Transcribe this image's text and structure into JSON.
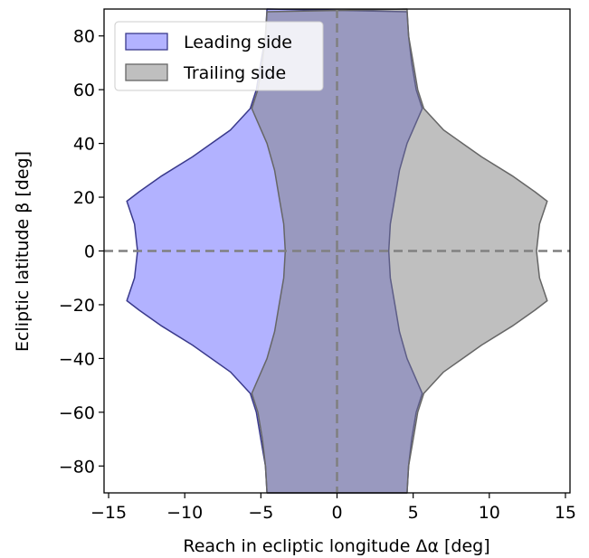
{
  "chart_data": {
    "type": "area",
    "xlabel": "Reach in ecliptic longitude  Δα [deg]",
    "ylabel": "Ecliptic latitude  β [deg]",
    "xlim": [
      -15.3,
      15.3
    ],
    "ylim": [
      -90,
      90
    ],
    "xticks": [
      -15,
      -10,
      -5,
      0,
      5,
      10,
      15
    ],
    "xtick_labels": [
      "−15",
      "−10",
      "−5",
      "0",
      "5",
      "10",
      "15"
    ],
    "yticks": [
      -80,
      -60,
      -40,
      -20,
      0,
      20,
      40,
      60,
      80
    ],
    "ytick_labels": [
      "−80",
      "−60",
      "−40",
      "−20",
      "0",
      "20",
      "40",
      "60",
      "80"
    ],
    "grid": false,
    "legend_position": "top-left",
    "reference_lines": [
      {
        "orientation": "horizontal",
        "value": 0,
        "style": "dashed",
        "color": "#808080"
      },
      {
        "orientation": "vertical",
        "value": 0,
        "style": "dashed",
        "color": "#808080"
      }
    ],
    "series": [
      {
        "name": "Leading side",
        "fill": "#6666ff",
        "fill_opacity": 0.5,
        "stroke": "#3a3a8c",
        "right_boundary": [
          {
            "beta": -90,
            "x": 4.6
          },
          {
            "beta": -80,
            "x": 4.7
          },
          {
            "beta": -70,
            "x": 4.9
          },
          {
            "beta": -60,
            "x": 5.2
          },
          {
            "beta": -53,
            "x": 5.6
          },
          {
            "beta": -40,
            "x": 4.6
          },
          {
            "beta": -30,
            "x": 4.1
          },
          {
            "beta": -20,
            "x": 3.8
          },
          {
            "beta": -10,
            "x": 3.5
          },
          {
            "beta": 0,
            "x": 3.4
          },
          {
            "beta": 10,
            "x": 3.5
          },
          {
            "beta": 20,
            "x": 3.8
          },
          {
            "beta": 30,
            "x": 4.1
          },
          {
            "beta": 40,
            "x": 4.6
          },
          {
            "beta": 53,
            "x": 5.6
          },
          {
            "beta": 60,
            "x": 5.2
          },
          {
            "beta": 70,
            "x": 4.9
          },
          {
            "beta": 80,
            "x": 4.7
          },
          {
            "beta": 89,
            "x": 4.6
          }
        ],
        "left_boundary": [
          {
            "beta": 90,
            "x": -4.6
          },
          {
            "beta": 80,
            "x": -4.7
          },
          {
            "beta": 70,
            "x": -5.0
          },
          {
            "beta": 60,
            "x": -5.3
          },
          {
            "beta": 53,
            "x": -5.7
          },
          {
            "beta": 45,
            "x": -7.0
          },
          {
            "beta": 35,
            "x": -9.5
          },
          {
            "beta": 28,
            "x": -11.5
          },
          {
            "beta": 22,
            "x": -13.0
          },
          {
            "beta": 18.5,
            "x": -13.8
          },
          {
            "beta": 10,
            "x": -13.3
          },
          {
            "beta": 0,
            "x": -13.1
          },
          {
            "beta": -10,
            "x": -13.3
          },
          {
            "beta": -18.5,
            "x": -13.8
          },
          {
            "beta": -22,
            "x": -13.0
          },
          {
            "beta": -28,
            "x": -11.5
          },
          {
            "beta": -35,
            "x": -9.5
          },
          {
            "beta": -45,
            "x": -7.0
          },
          {
            "beta": -53,
            "x": -5.7
          },
          {
            "beta": -60,
            "x": -5.3
          },
          {
            "beta": -70,
            "x": -5.0
          },
          {
            "beta": -80,
            "x": -4.7
          },
          {
            "beta": -90,
            "x": -4.6
          }
        ]
      },
      {
        "name": "Trailing side",
        "fill": "#808080",
        "fill_opacity": 0.5,
        "stroke": "#666666",
        "right_boundary": [
          {
            "beta": -90,
            "x": 4.6
          },
          {
            "beta": -80,
            "x": 4.7
          },
          {
            "beta": -70,
            "x": 5.0
          },
          {
            "beta": -60,
            "x": 5.3
          },
          {
            "beta": -53,
            "x": 5.7
          },
          {
            "beta": -45,
            "x": 7.0
          },
          {
            "beta": -35,
            "x": 9.5
          },
          {
            "beta": -28,
            "x": 11.5
          },
          {
            "beta": -22,
            "x": 13.0
          },
          {
            "beta": -18.5,
            "x": 13.8
          },
          {
            "beta": -10,
            "x": 13.3
          },
          {
            "beta": 0,
            "x": 13.1
          },
          {
            "beta": 10,
            "x": 13.3
          },
          {
            "beta": 18.5,
            "x": 13.8
          },
          {
            "beta": 22,
            "x": 13.0
          },
          {
            "beta": 28,
            "x": 11.5
          },
          {
            "beta": 35,
            "x": 9.5
          },
          {
            "beta": 45,
            "x": 7.0
          },
          {
            "beta": 53,
            "x": 5.7
          },
          {
            "beta": 60,
            "x": 5.3
          },
          {
            "beta": 70,
            "x": 5.0
          },
          {
            "beta": 80,
            "x": 4.7
          },
          {
            "beta": 90,
            "x": 4.6
          }
        ],
        "left_boundary": [
          {
            "beta": 89,
            "x": -4.6
          },
          {
            "beta": 80,
            "x": -4.7
          },
          {
            "beta": 70,
            "x": -4.9
          },
          {
            "beta": 60,
            "x": -5.2
          },
          {
            "beta": 53,
            "x": -5.6
          },
          {
            "beta": 40,
            "x": -4.6
          },
          {
            "beta": 30,
            "x": -4.1
          },
          {
            "beta": 20,
            "x": -3.8
          },
          {
            "beta": 10,
            "x": -3.5
          },
          {
            "beta": 0,
            "x": -3.4
          },
          {
            "beta": -10,
            "x": -3.5
          },
          {
            "beta": -20,
            "x": -3.8
          },
          {
            "beta": -30,
            "x": -4.1
          },
          {
            "beta": -40,
            "x": -4.6
          },
          {
            "beta": -53,
            "x": -5.6
          },
          {
            "beta": -60,
            "x": -5.2
          },
          {
            "beta": -70,
            "x": -4.9
          },
          {
            "beta": -80,
            "x": -4.7
          },
          {
            "beta": -90,
            "x": -4.6
          }
        ]
      }
    ]
  }
}
